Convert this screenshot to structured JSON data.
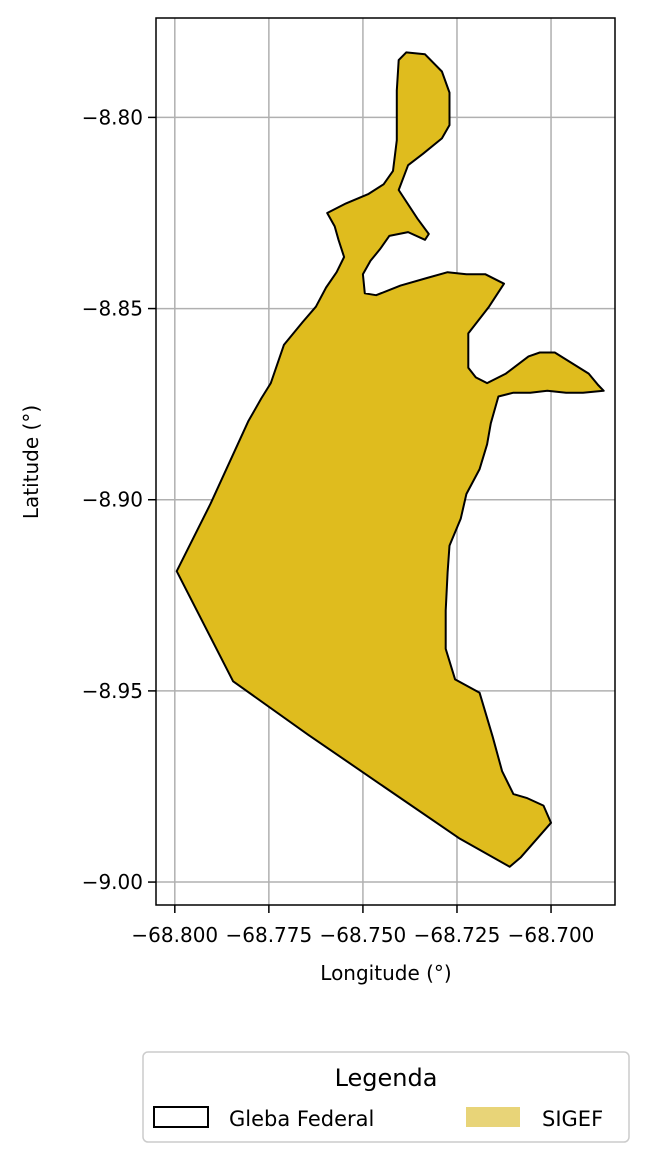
{
  "chart_data": {
    "type": "map",
    "xlabel": "Longitude (°)",
    "ylabel": "Latitude (°)",
    "xlim": [
      -68.805,
      -68.683
    ],
    "ylim": [
      -9.006,
      -8.774
    ],
    "grid": true,
    "x_ticks": [
      -68.8,
      -68.775,
      -68.75,
      -68.725,
      -68.7
    ],
    "x_tick_labels": [
      "−68.800",
      "−68.775",
      "−68.750",
      "−68.725",
      "−68.700"
    ],
    "y_ticks": [
      -8.8,
      -8.85,
      -8.9,
      -8.95,
      -9.0
    ],
    "y_tick_labels": [
      "−8.80",
      "−8.85",
      "−8.90",
      "−8.95",
      "−9.00"
    ],
    "legend": {
      "title": "Legenda",
      "placement": "bottom-center, below plot",
      "entries": [
        {
          "label": "Gleba Federal",
          "style": "outline",
          "color": "#000000"
        },
        {
          "label": "SIGEF",
          "style": "fill",
          "color": "#E8D478"
        }
      ]
    },
    "colors": {
      "sigef_fill": "#DFBC1E",
      "boundary": "#000000",
      "grid": "#B0B0B0"
    },
    "polygon": [
      [
        -68.7995,
        -8.9187
      ],
      [
        -68.7905,
        -8.901
      ],
      [
        -68.7805,
        -8.8795
      ],
      [
        -68.777,
        -8.8735
      ],
      [
        -68.7745,
        -8.8695
      ],
      [
        -68.771,
        -8.8595
      ],
      [
        -68.766,
        -8.8535
      ],
      [
        -68.7625,
        -8.8495
      ],
      [
        -68.7598,
        -8.8445
      ],
      [
        -68.757,
        -8.8405
      ],
      [
        -68.755,
        -8.8365
      ],
      [
        -68.7565,
        -8.832
      ],
      [
        -68.7575,
        -8.8285
      ],
      [
        -68.7595,
        -8.825
      ],
      [
        -68.7545,
        -8.8225
      ],
      [
        -68.7485,
        -8.82
      ],
      [
        -68.7445,
        -8.8175
      ],
      [
        -68.742,
        -8.814
      ],
      [
        -68.741,
        -8.806
      ],
      [
        -68.741,
        -8.793
      ],
      [
        -68.7405,
        -8.785
      ],
      [
        -68.7385,
        -8.783
      ],
      [
        -68.7335,
        -8.7835
      ],
      [
        -68.729,
        -8.788
      ],
      [
        -68.727,
        -8.7935
      ],
      [
        -68.727,
        -8.802
      ],
      [
        -68.729,
        -8.8055
      ],
      [
        -68.734,
        -8.8095
      ],
      [
        -68.738,
        -8.8125
      ],
      [
        -68.7405,
        -8.819
      ],
      [
        -68.7355,
        -8.8265
      ],
      [
        -68.7325,
        -8.8305
      ],
      [
        -68.7335,
        -8.832
      ],
      [
        -68.738,
        -8.83
      ],
      [
        -68.743,
        -8.831
      ],
      [
        -68.7455,
        -8.8345
      ],
      [
        -68.748,
        -8.8375
      ],
      [
        -68.75,
        -8.841
      ],
      [
        -68.7495,
        -8.846
      ],
      [
        -68.7465,
        -8.8465
      ],
      [
        -68.74,
        -8.844
      ],
      [
        -68.733,
        -8.842
      ],
      [
        -68.7275,
        -8.8405
      ],
      [
        -68.7225,
        -8.841
      ],
      [
        -68.7175,
        -8.841
      ],
      [
        -68.7125,
        -8.8435
      ],
      [
        -68.7165,
        -8.8495
      ],
      [
        -68.722,
        -8.8565
      ],
      [
        -68.722,
        -8.8655
      ],
      [
        -68.72,
        -8.868
      ],
      [
        -68.717,
        -8.8695
      ],
      [
        -68.712,
        -8.867
      ],
      [
        -68.706,
        -8.8625
      ],
      [
        -68.703,
        -8.8615
      ],
      [
        -68.699,
        -8.8615
      ],
      [
        -68.69,
        -8.867
      ],
      [
        -68.6875,
        -8.87
      ],
      [
        -68.686,
        -8.8715
      ],
      [
        -68.6915,
        -8.872
      ],
      [
        -68.696,
        -8.872
      ],
      [
        -68.701,
        -8.8715
      ],
      [
        -68.7055,
        -8.872
      ],
      [
        -68.71,
        -8.872
      ],
      [
        -68.714,
        -8.873
      ],
      [
        -68.716,
        -8.88
      ],
      [
        -68.717,
        -8.8855
      ],
      [
        -68.719,
        -8.892
      ],
      [
        -68.7225,
        -8.8985
      ],
      [
        -68.724,
        -8.905
      ],
      [
        -68.727,
        -8.912
      ],
      [
        -68.7275,
        -8.919
      ],
      [
        -68.728,
        -8.929
      ],
      [
        -68.728,
        -8.939
      ],
      [
        -68.7255,
        -8.947
      ],
      [
        -68.719,
        -8.9505
      ],
      [
        -68.7155,
        -8.962
      ],
      [
        -68.713,
        -8.971
      ],
      [
        -68.71,
        -8.977
      ],
      [
        -68.7065,
        -8.978
      ],
      [
        -68.702,
        -8.98
      ],
      [
        -68.7,
        -8.9845
      ],
      [
        -68.708,
        -8.9935
      ],
      [
        -68.711,
        -8.996
      ],
      [
        -68.7245,
        -8.9885
      ],
      [
        -68.7445,
        -8.975
      ],
      [
        -68.7645,
        -8.9615
      ],
      [
        -68.7845,
        -8.9475
      ],
      [
        -68.7995,
        -8.9187
      ]
    ]
  }
}
